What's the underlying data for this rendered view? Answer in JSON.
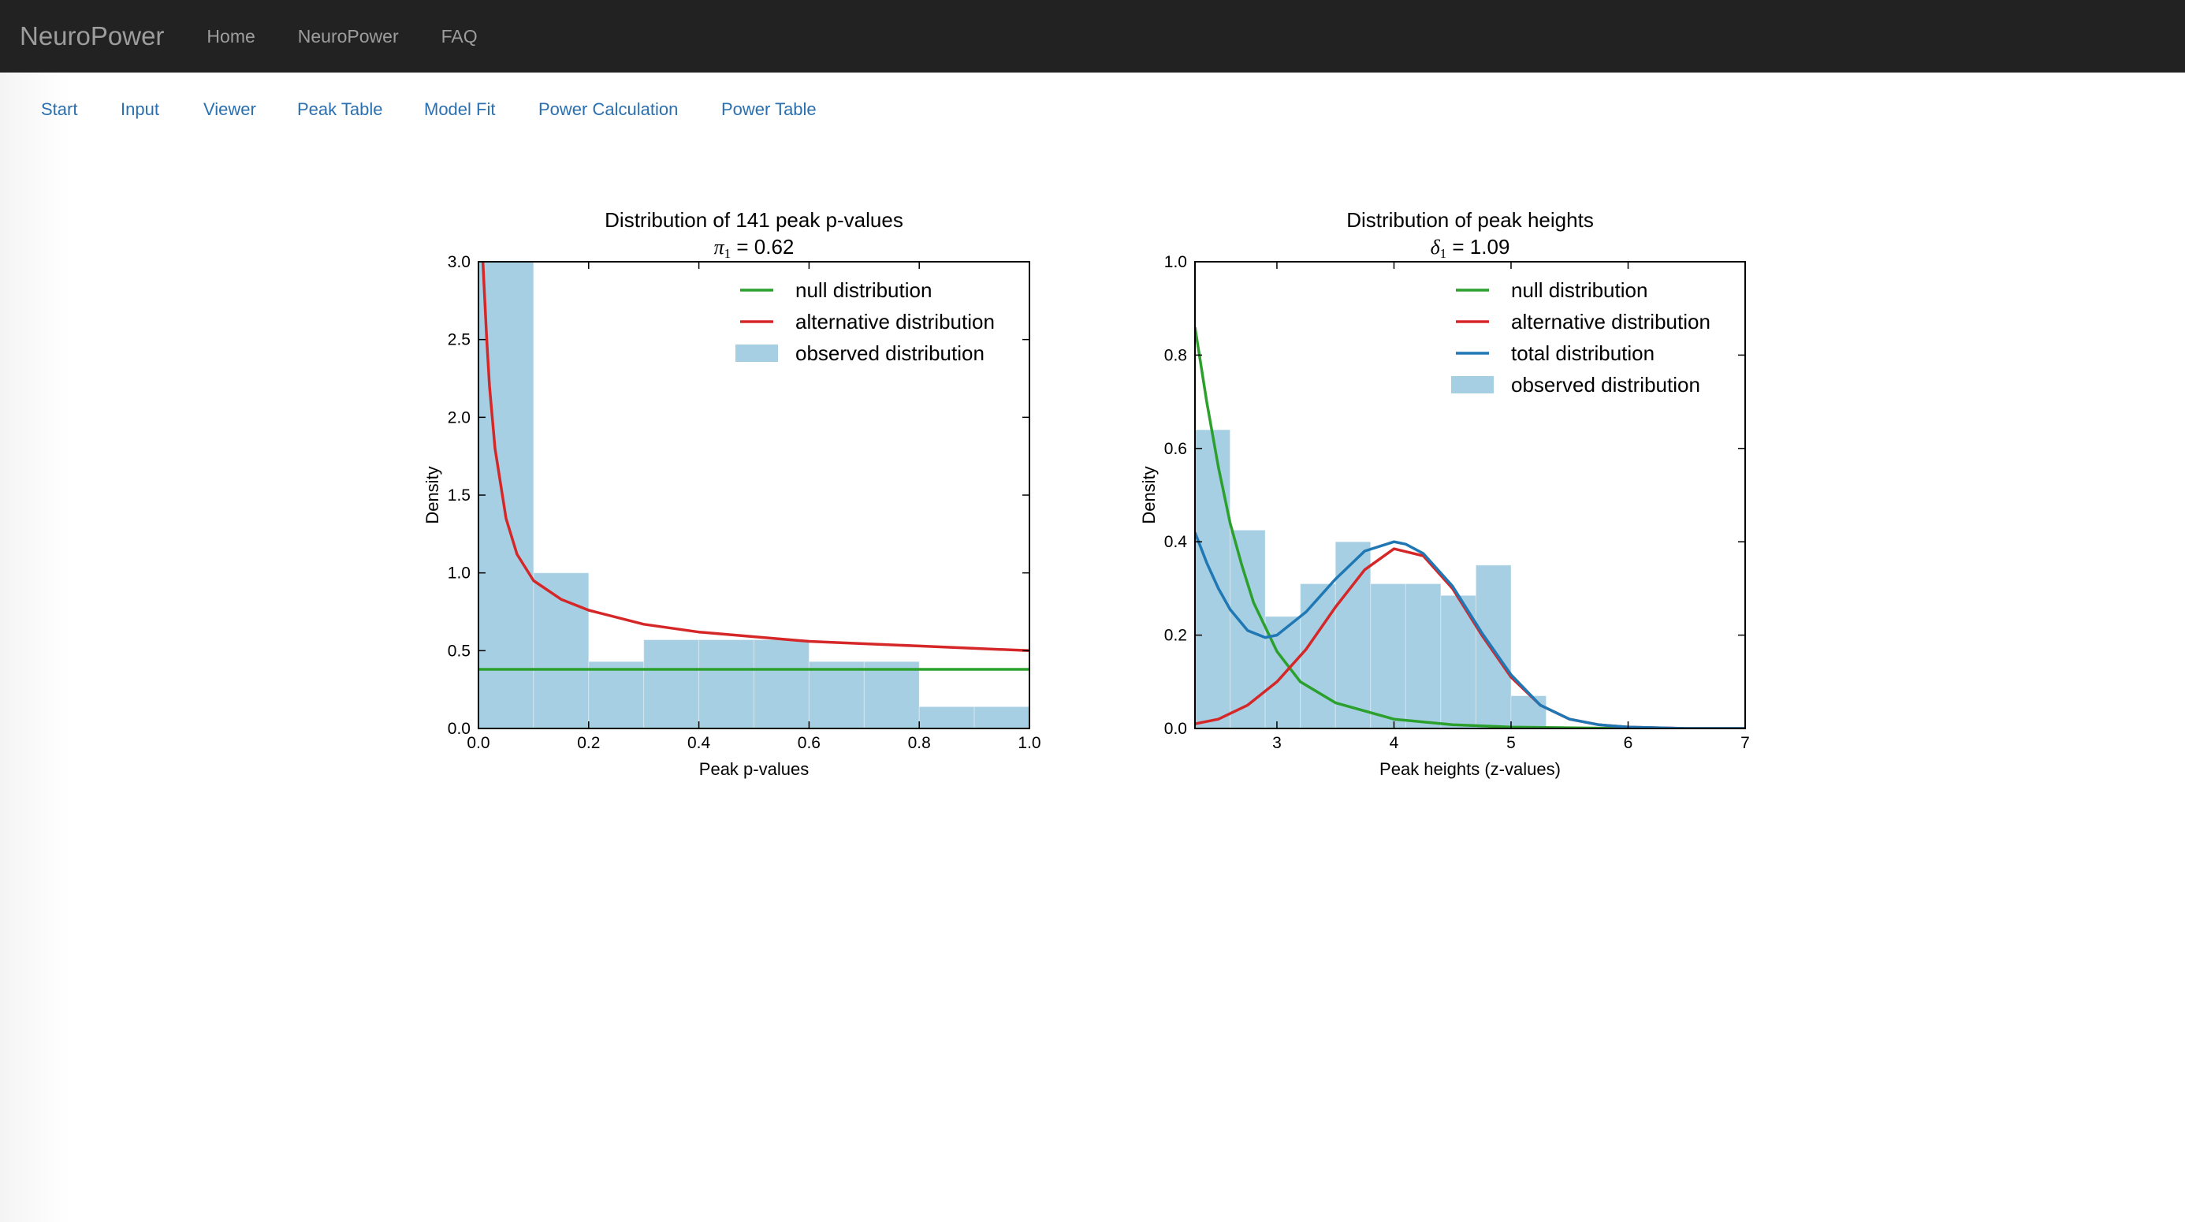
{
  "navbar": {
    "brand": "NeuroPower",
    "links": [
      "Home",
      "NeuroPower",
      "FAQ"
    ]
  },
  "subnav": {
    "links": [
      "Start",
      "Input",
      "Viewer",
      "Peak Table",
      "Model Fit",
      "Power Calculation",
      "Power Table"
    ]
  },
  "colors": {
    "navbar_bg": "#222222",
    "link": "#2a6fb0",
    "hist": "#a6cfe3",
    "null": "#2ca02c",
    "alternative": "#d62728",
    "total": "#1f77b4"
  },
  "chart_data": [
    {
      "type": "histogram",
      "title": "Distribution of 141 peak p-values",
      "subtitle": "π1 = 0.62",
      "subtitle_symbol": "π",
      "subtitle_subscript": "1",
      "subtitle_value": " = 0.62",
      "xlabel": "Peak p-values",
      "ylabel": "Density",
      "xlim": [
        0.0,
        1.0
      ],
      "ylim": [
        0.0,
        3.0
      ],
      "xticks": [
        "0.0",
        "0.2",
        "0.4",
        "0.6",
        "0.8",
        "1.0"
      ],
      "yticks": [
        "0.0",
        "0.5",
        "1.0",
        "1.5",
        "2.0",
        "2.5",
        "3.0"
      ],
      "legend_position": "top-right",
      "legend": [
        "null distribution",
        "alternative distribution",
        "observed distribution"
      ],
      "bins": [
        {
          "x0": 0.0,
          "x1": 0.1,
          "density": 3.2
        },
        {
          "x0": 0.1,
          "x1": 0.2,
          "density": 1.0
        },
        {
          "x0": 0.2,
          "x1": 0.3,
          "density": 0.43
        },
        {
          "x0": 0.3,
          "x1": 0.4,
          "density": 0.57
        },
        {
          "x0": 0.4,
          "x1": 0.5,
          "density": 0.57
        },
        {
          "x0": 0.5,
          "x1": 0.6,
          "density": 0.57
        },
        {
          "x0": 0.6,
          "x1": 0.7,
          "density": 0.43
        },
        {
          "x0": 0.7,
          "x1": 0.8,
          "density": 0.43
        },
        {
          "x0": 0.8,
          "x1": 0.9,
          "density": 0.14
        },
        {
          "x0": 0.9,
          "x1": 1.0,
          "density": 0.14
        }
      ],
      "series": [
        {
          "name": "null distribution",
          "color": "#2ca02c",
          "x": [
            0.0,
            1.0
          ],
          "y": [
            0.38,
            0.38
          ]
        },
        {
          "name": "alternative distribution",
          "color": "#d62728",
          "x": [
            0.008,
            0.015,
            0.02,
            0.03,
            0.05,
            0.07,
            0.1,
            0.15,
            0.2,
            0.3,
            0.4,
            0.5,
            0.6,
            0.7,
            0.8,
            0.9,
            1.0
          ],
          "y": [
            3.0,
            2.5,
            2.2,
            1.8,
            1.35,
            1.12,
            0.95,
            0.83,
            0.76,
            0.67,
            0.62,
            0.59,
            0.56,
            0.545,
            0.53,
            0.515,
            0.5
          ]
        }
      ]
    },
    {
      "type": "histogram",
      "title": "Distribution of peak heights",
      "subtitle": "δ1 = 1.09",
      "subtitle_symbol": "δ",
      "subtitle_subscript": "1",
      "subtitle_value": " = 1.09",
      "xlabel": "Peak heights (z-values)",
      "ylabel": "Density",
      "xlim": [
        2.3,
        7.0
      ],
      "ylim": [
        0.0,
        1.0
      ],
      "xticks": [
        "3",
        "4",
        "5",
        "6",
        "7"
      ],
      "xtick_values": [
        3,
        4,
        5,
        6,
        7
      ],
      "yticks": [
        "0.0",
        "0.2",
        "0.4",
        "0.6",
        "0.8",
        "1.0"
      ],
      "legend_position": "top-right",
      "legend": [
        "null distribution",
        "alternative distribution",
        "total distribution",
        "observed distribution"
      ],
      "bins": [
        {
          "x0": 2.3,
          "x1": 2.6,
          "density": 0.64
        },
        {
          "x0": 2.6,
          "x1": 2.9,
          "density": 0.425
        },
        {
          "x0": 2.9,
          "x1": 3.2,
          "density": 0.24
        },
        {
          "x0": 3.2,
          "x1": 3.5,
          "density": 0.31
        },
        {
          "x0": 3.5,
          "x1": 3.8,
          "density": 0.4
        },
        {
          "x0": 3.8,
          "x1": 4.1,
          "density": 0.31
        },
        {
          "x0": 4.1,
          "x1": 4.4,
          "density": 0.31
        },
        {
          "x0": 4.4,
          "x1": 4.7,
          "density": 0.285
        },
        {
          "x0": 4.7,
          "x1": 5.0,
          "density": 0.35
        },
        {
          "x0": 5.0,
          "x1": 5.3,
          "density": 0.07
        }
      ],
      "series": [
        {
          "name": "null distribution",
          "color": "#2ca02c",
          "x": [
            2.3,
            2.4,
            2.5,
            2.6,
            2.7,
            2.8,
            3.0,
            3.2,
            3.5,
            4.0,
            4.5,
            5.0,
            6.0,
            7.0
          ],
          "y": [
            0.86,
            0.7,
            0.56,
            0.44,
            0.35,
            0.27,
            0.165,
            0.1,
            0.055,
            0.02,
            0.008,
            0.003,
            0.0,
            0.0
          ]
        },
        {
          "name": "alternative distribution",
          "color": "#d62728",
          "x": [
            2.3,
            2.5,
            2.75,
            3.0,
            3.25,
            3.5,
            3.75,
            4.0,
            4.25,
            4.5,
            4.75,
            5.0,
            5.25,
            5.5,
            5.75,
            6.0,
            6.5,
            7.0
          ],
          "y": [
            0.01,
            0.02,
            0.05,
            0.1,
            0.17,
            0.26,
            0.34,
            0.385,
            0.37,
            0.3,
            0.2,
            0.11,
            0.05,
            0.02,
            0.008,
            0.003,
            0.0,
            0.0
          ]
        },
        {
          "name": "total distribution",
          "color": "#1f77b4",
          "x": [
            2.3,
            2.4,
            2.5,
            2.6,
            2.75,
            2.9,
            3.0,
            3.25,
            3.5,
            3.75,
            4.0,
            4.1,
            4.25,
            4.5,
            4.75,
            5.0,
            5.25,
            5.5,
            5.75,
            6.0,
            6.5,
            7.0
          ],
          "y": [
            0.42,
            0.355,
            0.3,
            0.255,
            0.21,
            0.195,
            0.2,
            0.25,
            0.32,
            0.38,
            0.4,
            0.395,
            0.375,
            0.305,
            0.205,
            0.115,
            0.05,
            0.02,
            0.008,
            0.003,
            0.0,
            0.0
          ]
        }
      ]
    }
  ]
}
